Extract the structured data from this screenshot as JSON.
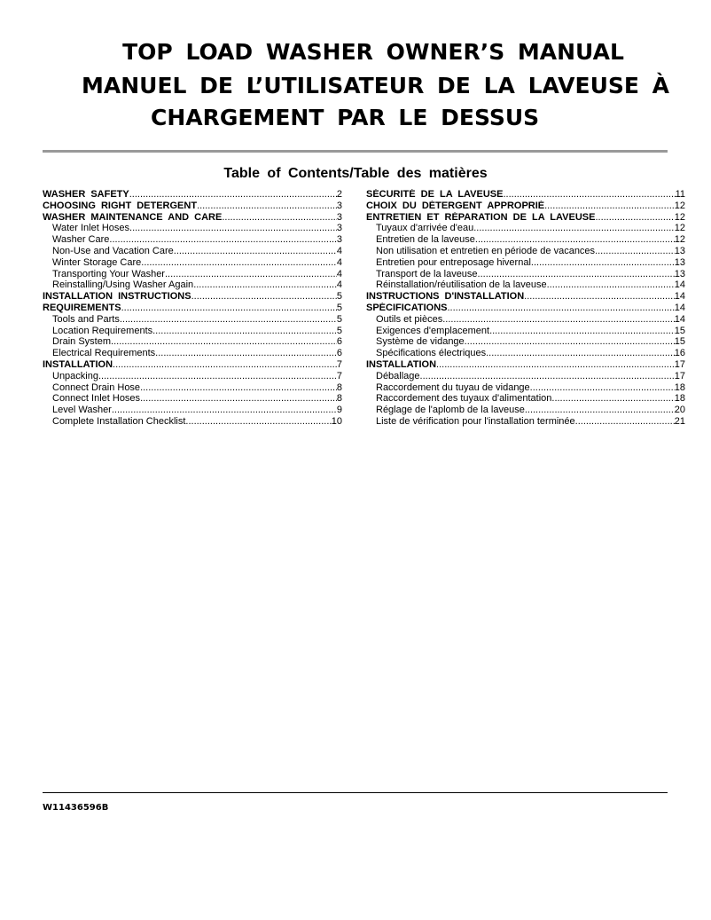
{
  "title": {
    "line1": "TOP LOAD WASHER OWNER’S MANUAL",
    "line2": "MANUEL DE L’UTILISATEUR DE LA LAVEUSE À",
    "line3": "CHARGEMENT PAR LE DESSUS"
  },
  "toc_heading": "Table of Contents/Table des matières",
  "toc_en": [
    {
      "label": "WASHER SAFETY",
      "page": "2",
      "level": "main"
    },
    {
      "label": "CHOOSING RIGHT DETERGENT",
      "page": "3",
      "level": "main"
    },
    {
      "label": "WASHER MAINTENANCE AND CARE",
      "page": "3",
      "level": "main"
    },
    {
      "label": "Water Inlet Hoses",
      "page": "3",
      "level": "sub"
    },
    {
      "label": "Washer Care",
      "page": "3",
      "level": "sub"
    },
    {
      "label": "Non-Use and Vacation Care",
      "page": "4",
      "level": "sub"
    },
    {
      "label": "Winter Storage Care",
      "page": "4",
      "level": "sub"
    },
    {
      "label": "Transporting Your Washer",
      "page": "4",
      "level": "sub"
    },
    {
      "label": "Reinstalling/Using Washer Again",
      "page": "4",
      "level": "sub"
    },
    {
      "label": "INSTALLATION INSTRUCTIONS",
      "page": "5",
      "level": "main"
    },
    {
      "label": "REQUIREMENTS",
      "page": "5",
      "level": "main"
    },
    {
      "label": "Tools and Parts",
      "page": "5",
      "level": "sub"
    },
    {
      "label": "Location Requirements",
      "page": "5",
      "level": "sub"
    },
    {
      "label": "Drain System",
      "page": "6",
      "level": "sub"
    },
    {
      "label": "Electrical Requirements",
      "page": "6",
      "level": "sub"
    },
    {
      "label": "INSTALLATION",
      "page": "7",
      "level": "main"
    },
    {
      "label": "Unpacking",
      "page": "7",
      "level": "sub"
    },
    {
      "label": "Connect Drain Hose",
      "page": "8",
      "level": "sub"
    },
    {
      "label": "Connect Inlet Hoses",
      "page": "8",
      "level": "sub"
    },
    {
      "label": "Level Washer",
      "page": "9",
      "level": "sub"
    },
    {
      "label": "Complete Installation Checklist",
      "page": "10",
      "level": "sub"
    }
  ],
  "toc_fr": [
    {
      "label": "SÉCURITÉ DE LA LAVEUSE",
      "page": "11",
      "level": "main"
    },
    {
      "label": "CHOIX DU DÉTERGENT APPROPRIÉ",
      "page": "12",
      "level": "main"
    },
    {
      "label": "ENTRETIEN ET RÉPARATION DE LA LAVEUSE",
      "page": "12",
      "level": "main"
    },
    {
      "label": "Tuyaux d'arrivée d'eau",
      "page": "12",
      "level": "sub"
    },
    {
      "label": "Entretien de la laveuse",
      "page": "12",
      "level": "sub"
    },
    {
      "label": "Non utilisation et entretien en période de vacances",
      "page": "13",
      "level": "sub"
    },
    {
      "label": "Entretien pour entreposage hivernal",
      "page": "13",
      "level": "sub"
    },
    {
      "label": "Transport de la laveuse",
      "page": "13",
      "level": "sub"
    },
    {
      "label": "Réinstallation/réutilisation de la laveuse",
      "page": "14",
      "level": "sub"
    },
    {
      "label": "INSTRUCTIONS D'INSTALLATION",
      "page": "14",
      "level": "main"
    },
    {
      "label": "SPÉCIFICATIONS",
      "page": "14",
      "level": "main"
    },
    {
      "label": "Outils et pièces",
      "page": "14",
      "level": "sub"
    },
    {
      "label": "Exigences d'emplacement",
      "page": "15",
      "level": "sub"
    },
    {
      "label": "Système de vidange",
      "page": "15",
      "level": "sub"
    },
    {
      "label": "Spécifications électriques",
      "page": "16",
      "level": "sub"
    },
    {
      "label": "INSTALLATION",
      "page": "17",
      "level": "main"
    },
    {
      "label": "Déballage",
      "page": "17",
      "level": "sub"
    },
    {
      "label": "Raccordement du tuyau de vidange",
      "page": "18",
      "level": "sub"
    },
    {
      "label": "Raccordement des tuyaux d'alimentation",
      "page": "18",
      "level": "sub"
    },
    {
      "label": "Réglage de l'aplomb de la laveuse",
      "page": "20",
      "level": "sub"
    },
    {
      "label": "Liste de vérification pour l'installation terminée",
      "page": "21",
      "level": "sub"
    }
  ],
  "document_number": "W11436596B"
}
